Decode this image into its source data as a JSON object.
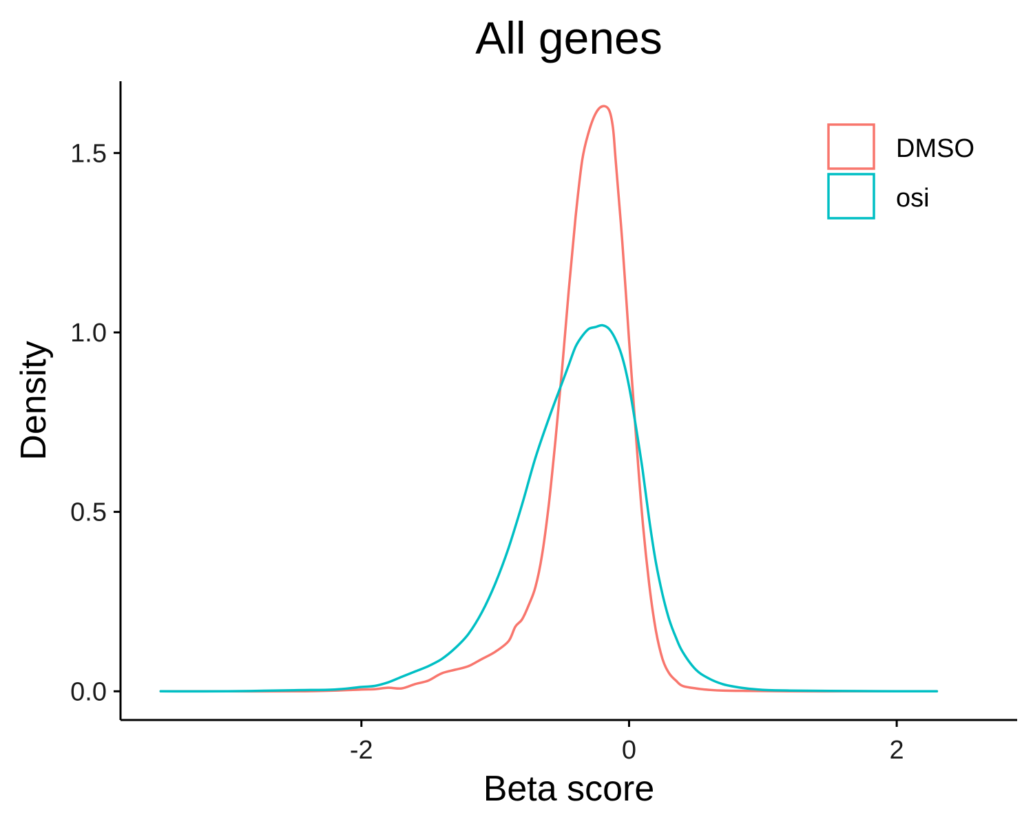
{
  "chart_data": {
    "type": "line",
    "title": "All genes",
    "xlabel": "Beta score",
    "ylabel": "Density",
    "xlim": [
      -3.8,
      2.9
    ],
    "ylim": [
      -0.08,
      1.7
    ],
    "x_ticks": [
      -2,
      0,
      2
    ],
    "x_tick_labels": [
      "-2",
      "0",
      "2"
    ],
    "y_ticks": [
      0.0,
      0.5,
      1.0,
      1.5
    ],
    "y_tick_labels": [
      "0.0",
      "0.5",
      "1.0",
      "1.5"
    ],
    "grid": false,
    "legend_position": "top-right",
    "series": [
      {
        "name": "DMSO",
        "color": "#F8766D",
        "x": [
          -3.5,
          -3.0,
          -2.5,
          -2.2,
          -2.0,
          -1.9,
          -1.8,
          -1.7,
          -1.6,
          -1.5,
          -1.4,
          -1.3,
          -1.2,
          -1.1,
          -1.0,
          -0.9,
          -0.85,
          -0.8,
          -0.75,
          -0.7,
          -0.65,
          -0.6,
          -0.55,
          -0.5,
          -0.45,
          -0.4,
          -0.35,
          -0.3,
          -0.25,
          -0.2,
          -0.15,
          -0.12,
          -0.1,
          -0.05,
          0.0,
          0.05,
          0.1,
          0.15,
          0.2,
          0.25,
          0.3,
          0.35,
          0.4,
          0.5,
          0.6,
          0.7,
          0.9,
          1.2,
          1.6,
          2.0,
          2.3
        ],
        "y": [
          0.0,
          0.0,
          0.0,
          0.002,
          0.005,
          0.006,
          0.01,
          0.008,
          0.02,
          0.03,
          0.05,
          0.06,
          0.07,
          0.09,
          0.11,
          0.14,
          0.18,
          0.2,
          0.24,
          0.29,
          0.38,
          0.52,
          0.7,
          0.9,
          1.12,
          1.32,
          1.48,
          1.56,
          1.61,
          1.63,
          1.62,
          1.57,
          1.48,
          1.25,
          0.98,
          0.72,
          0.48,
          0.3,
          0.17,
          0.09,
          0.05,
          0.03,
          0.015,
          0.008,
          0.004,
          0.002,
          0.001,
          0.0,
          0.0,
          0.0,
          0.0
        ]
      },
      {
        "name": "osi",
        "color": "#00BFC4",
        "x": [
          -3.5,
          -3.0,
          -2.5,
          -2.2,
          -2.0,
          -1.9,
          -1.8,
          -1.7,
          -1.6,
          -1.5,
          -1.4,
          -1.3,
          -1.2,
          -1.1,
          -1.0,
          -0.9,
          -0.8,
          -0.7,
          -0.6,
          -0.5,
          -0.45,
          -0.4,
          -0.35,
          -0.3,
          -0.25,
          -0.2,
          -0.15,
          -0.1,
          -0.05,
          0.0,
          0.05,
          0.1,
          0.15,
          0.2,
          0.25,
          0.3,
          0.35,
          0.4,
          0.5,
          0.6,
          0.7,
          0.8,
          0.9,
          1.0,
          1.2,
          1.5,
          2.0,
          2.3
        ],
        "y": [
          0.0,
          0.0,
          0.003,
          0.005,
          0.012,
          0.015,
          0.025,
          0.04,
          0.055,
          0.07,
          0.09,
          0.12,
          0.16,
          0.22,
          0.3,
          0.4,
          0.52,
          0.65,
          0.76,
          0.86,
          0.91,
          0.96,
          0.99,
          1.01,
          1.015,
          1.02,
          1.01,
          0.98,
          0.93,
          0.85,
          0.74,
          0.62,
          0.48,
          0.36,
          0.27,
          0.2,
          0.15,
          0.11,
          0.06,
          0.035,
          0.02,
          0.012,
          0.007,
          0.004,
          0.002,
          0.001,
          0.0,
          0.0
        ]
      }
    ]
  }
}
